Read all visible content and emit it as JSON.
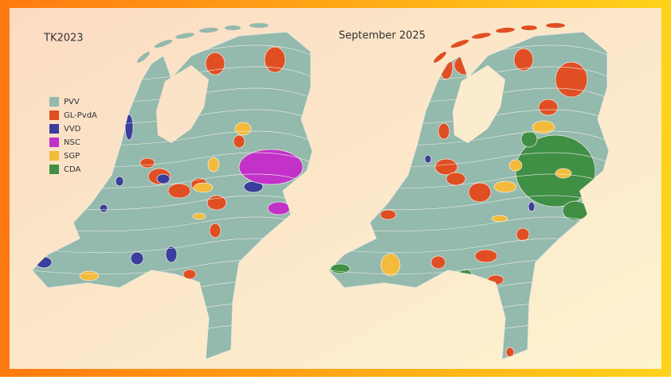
{
  "maps": [
    {
      "title": "TK2023"
    },
    {
      "title": "September 2025"
    }
  ],
  "legend": [
    {
      "label": "PVV",
      "color": "#94b9ad"
    },
    {
      "label": "GL-PvdA",
      "color": "#e04f23"
    },
    {
      "label": "VVD",
      "color": "#3b3e9c"
    },
    {
      "label": "NSC",
      "color": "#c232c8"
    },
    {
      "label": "SGP",
      "color": "#f2bb3c"
    },
    {
      "label": "CDA",
      "color": "#3f8f45"
    }
  ]
}
